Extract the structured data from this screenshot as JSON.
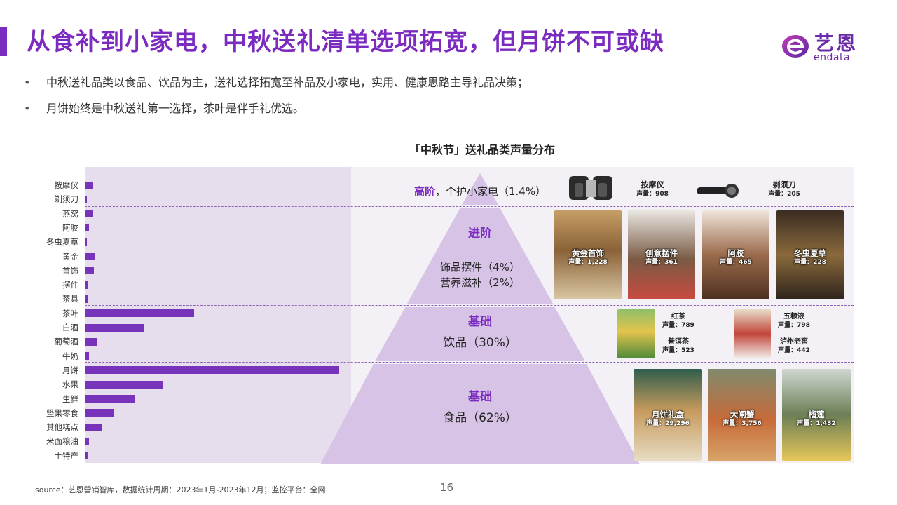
{
  "title": "从食补到小家电，中秋送礼清单选项拓宽，但月饼不可或缺",
  "logo": {
    "cn": "艺恩",
    "en": "endata"
  },
  "bullets": [
    "中秋送礼品类以食品、饮品为主，送礼选择拓宽至补品及小家电，实用、健康思路主导礼品决策；",
    "月饼始终是中秋送礼第一选择，茶叶是伴手礼优选。"
  ],
  "chart_data": {
    "type": "bar",
    "orientation": "horizontal",
    "title": "「中秋节」送礼品类声量分布",
    "categories": [
      "按摩仪",
      "剃须刀",
      "燕窝",
      "阿胶",
      "冬虫夏草",
      "黄金",
      "首饰",
      "摆件",
      "茶具",
      "茶叶",
      "白酒",
      "葡萄酒",
      "牛奶",
      "月饼",
      "水果",
      "生鲜",
      "坚果零食",
      "其他糕点",
      "米面粮油",
      "土特产"
    ],
    "values": [
      908,
      205,
      1000,
      465,
      228,
      1228,
      1050,
      361,
      300,
      12600,
      6900,
      1350,
      450,
      29296,
      9000,
      5800,
      3400,
      2000,
      450,
      350
    ],
    "color": "#7733b9",
    "groups": [
      {
        "level": "高阶",
        "label": "个护小家电（1.4%）",
        "categories": [
          "按摩仪",
          "剃须刀"
        ]
      },
      {
        "level": "进阶",
        "label": "饰品摆件（4%）",
        "label2": "营养滋补（2%）",
        "categories": [
          "燕窝",
          "阿胶",
          "冬虫夏草",
          "黄金",
          "首饰",
          "摆件",
          "茶具"
        ]
      },
      {
        "level": "基础",
        "label": "饮品（30%）",
        "categories": [
          "茶叶",
          "白酒",
          "葡萄酒",
          "牛奶"
        ]
      },
      {
        "level": "基础",
        "label": "食品（62%）",
        "categories": [
          "月饼",
          "水果",
          "生鲜",
          "坚果零食",
          "其他糕点",
          "米面粮油",
          "土特产"
        ]
      }
    ]
  },
  "tiers": {
    "top": {
      "level": "高阶",
      "text": "，个护小家电（1.4%）"
    },
    "mid": {
      "level": "进阶",
      "line1": "饰品摆件（4%）",
      "line2": "营养滋补（2%）"
    },
    "drink": {
      "level": "基础",
      "line1": "饮品（30%）"
    },
    "food": {
      "level": "基础",
      "line1": "食品（62%）"
    }
  },
  "products": {
    "massager": {
      "name": "按摩仪",
      "value": "声量：908"
    },
    "shaver": {
      "name": "剃须刀",
      "value": "声量：205"
    },
    "gold": {
      "name": "黄金首饰",
      "value": "声量：1,228"
    },
    "ornament": {
      "name": "创意摆件",
      "value": "声量：361"
    },
    "ejiao": {
      "name": "阿胶",
      "value": "声量：465"
    },
    "cordyceps": {
      "name": "冬虫夏草",
      "value": "声量：228"
    },
    "blacktea": {
      "name": "红茶",
      "value": "声量：789"
    },
    "puer": {
      "name": "普洱茶",
      "value": "声量：523"
    },
    "wuliangye": {
      "name": "五粮液",
      "value": "声量：798"
    },
    "luzhou": {
      "name": "泸州老窖",
      "value": "声量：442"
    },
    "mooncake": {
      "name": "月饼礼盒",
      "value": "声量：29,296"
    },
    "crab": {
      "name": "大闸蟹",
      "value": "声量：3,756"
    },
    "durian": {
      "name": "榴莲",
      "value": "声量：1,432"
    }
  },
  "colors": {
    "accent": "#7b2bbf",
    "bar": "#7733b9",
    "pyramid": "#d6c3e6",
    "panel": "#f3f1f5"
  },
  "footer": {
    "source": "source：艺恩营销智库，数据统计周期：2023年1月-2023年12月；监控平台：全网",
    "page": "16"
  }
}
